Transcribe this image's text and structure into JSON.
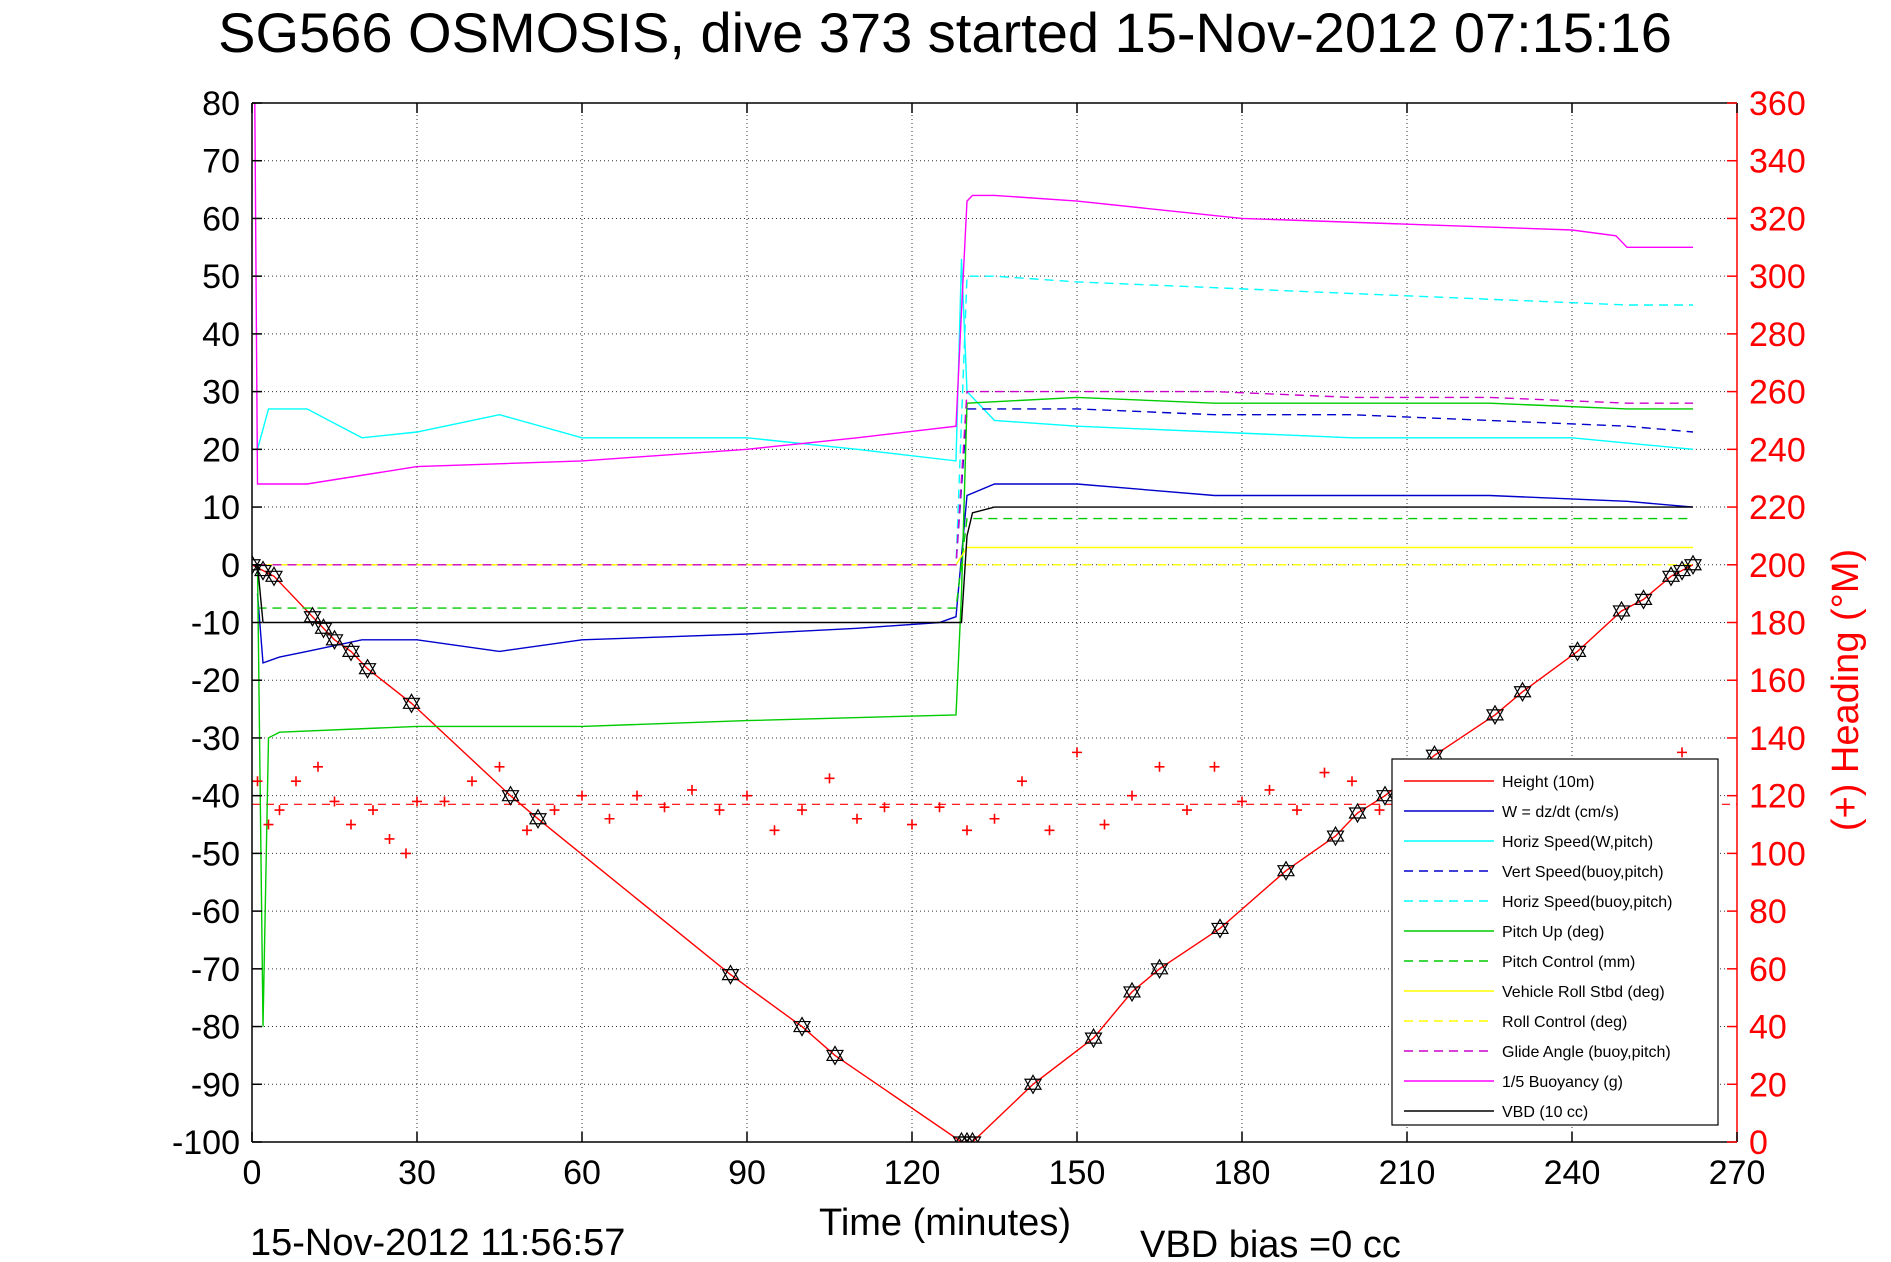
{
  "title": "SG566 OSMOSIS, dive 373 started 15-Nov-2012 07:15:16",
  "timestamp": "15-Nov-2012 11:56:57",
  "vbd_bias": "VBD bias =0 cc",
  "chart_data": {
    "type": "line",
    "title": "SG566 OSMOSIS, dive 373 started 15-Nov-2012 07:15:16",
    "xlabel": "Time (minutes)",
    "ylabel": "",
    "y2label": "(+) Heading (°M)",
    "xlim": [
      0,
      270
    ],
    "ylim": [
      -100,
      80
    ],
    "y2lim": [
      0,
      360
    ],
    "xticks": [
      0,
      30,
      60,
      90,
      120,
      150,
      180,
      210,
      240,
      270
    ],
    "yticks": [
      80,
      70,
      60,
      50,
      40,
      30,
      20,
      10,
      0,
      -10,
      -20,
      -30,
      -40,
      -50,
      -60,
      -70,
      -80,
      -90,
      -100
    ],
    "y2ticks": [
      360,
      340,
      320,
      300,
      280,
      260,
      240,
      220,
      200,
      180,
      160,
      140,
      120,
      100,
      80,
      60,
      40,
      20,
      0
    ],
    "grid": true,
    "legend_position": "bottom-right",
    "series": [
      {
        "name": "Height (10m)",
        "color": "#ff0000",
        "style": "solid",
        "x": [
          0,
          2,
          4,
          11,
          13,
          15,
          18,
          21,
          29,
          47,
          52,
          87,
          100,
          106,
          129,
          130,
          131,
          142,
          153,
          160,
          165,
          176,
          188,
          197,
          201,
          206,
          215,
          226,
          231,
          241,
          249,
          253,
          258,
          260,
          262
        ],
        "y": [
          0,
          -1,
          -2,
          -9,
          -11,
          -13,
          -15,
          -18,
          -24,
          -40,
          -44,
          -71,
          -80,
          -85,
          -100,
          -100,
          -100,
          -90,
          -82,
          -74,
          -70,
          -63,
          -53,
          -47,
          -43,
          -40,
          -33,
          -26,
          -22,
          -15,
          -8,
          -6,
          -2,
          -1,
          0
        ]
      },
      {
        "name": "W = dz/dt (cm/s)",
        "color": "#0000cc",
        "style": "solid",
        "x": [
          1,
          2,
          5,
          10,
          20,
          30,
          45,
          60,
          90,
          110,
          125,
          128,
          130,
          135,
          150,
          175,
          200,
          225,
          250,
          262
        ],
        "y": [
          -5,
          -17,
          -16,
          -15,
          -13,
          -13,
          -15,
          -13,
          -12,
          -11,
          -10,
          -9,
          12,
          14,
          14,
          12,
          12,
          12,
          11,
          10
        ]
      },
      {
        "name": "Horiz Speed(W,pitch)",
        "color": "#00ffff",
        "style": "solid",
        "x": [
          1,
          3,
          10,
          20,
          30,
          45,
          60,
          90,
          110,
          128,
          129,
          130,
          135,
          150,
          175,
          200,
          225,
          240,
          262
        ],
        "y": [
          20,
          27,
          27,
          22,
          23,
          26,
          22,
          22,
          20,
          18,
          53,
          30,
          25,
          24,
          23,
          22,
          22,
          22,
          20
        ]
      },
      {
        "name": "Vert Speed(buoy,pitch)",
        "color": "#0000cc",
        "style": "dashed",
        "x": [
          1,
          128,
          130,
          135,
          150,
          175,
          200,
          225,
          250,
          262
        ],
        "y": [
          0,
          0,
          27,
          27,
          27,
          26,
          26,
          25,
          24,
          23
        ]
      },
      {
        "name": "Horiz Speed(buoy,pitch)",
        "color": "#00ffff",
        "style": "dashed",
        "x": [
          1,
          128,
          130,
          135,
          150,
          175,
          200,
          225,
          250,
          262
        ],
        "y": [
          0,
          0,
          50,
          50,
          49,
          48,
          47,
          46,
          45,
          45
        ]
      },
      {
        "name": "Pitch Up (deg)",
        "color": "#00cc00",
        "style": "solid",
        "x": [
          1,
          2,
          3,
          5,
          30,
          60,
          90,
          128,
          129,
          130,
          150,
          175,
          200,
          225,
          250,
          262
        ],
        "y": [
          0,
          -80,
          -30,
          -29,
          -28,
          -28,
          -27,
          -26,
          -5,
          28,
          29,
          28,
          28,
          28,
          27,
          27
        ]
      },
      {
        "name": "Pitch Control (mm)",
        "color": "#00cc00",
        "style": "dashed",
        "x": [
          1,
          128,
          130,
          262
        ],
        "y": [
          -7.5,
          -7.5,
          8,
          8
        ]
      },
      {
        "name": "Vehicle Roll Stbd (deg)",
        "color": "#ffff00",
        "style": "solid",
        "x": [
          1,
          128,
          130,
          262
        ],
        "y": [
          0,
          0,
          3,
          3
        ]
      },
      {
        "name": "Roll Control (deg)",
        "color": "#ffff00",
        "style": "dashed",
        "x": [
          1,
          128,
          130,
          262
        ],
        "y": [
          0,
          0,
          0,
          0
        ]
      },
      {
        "name": "Glide Angle (buoy,pitch)",
        "color": "#cc00cc",
        "style": "dashed",
        "x": [
          1,
          128,
          130,
          150,
          175,
          200,
          225,
          250,
          262
        ],
        "y": [
          0,
          0,
          30,
          30,
          30,
          29,
          29,
          28,
          28
        ]
      },
      {
        "name": "1/5 Buoyancy (g)",
        "color": "#ff00ff",
        "style": "solid",
        "x": [
          0.5,
          1,
          3,
          10,
          30,
          60,
          90,
          110,
          128,
          129,
          130,
          131,
          135,
          150,
          180,
          210,
          240,
          248,
          250,
          262
        ],
        "y": [
          80,
          14,
          14,
          14,
          17,
          18,
          20,
          22,
          24,
          44,
          63,
          64,
          64,
          63,
          60,
          59,
          58,
          57,
          55,
          55
        ]
      },
      {
        "name": "VBD (10 cc)",
        "color": "#000000",
        "style": "solid",
        "x": [
          1,
          2,
          3,
          128,
          129,
          130,
          131,
          135,
          262
        ],
        "y": [
          0,
          -10,
          -10,
          -10,
          -10,
          5,
          9,
          10,
          10
        ]
      }
    ],
    "heading_series": {
      "name": "(+) Heading (°M)",
      "color": "#ff0000",
      "marker": "+",
      "x": [
        1,
        3,
        5,
        8,
        12,
        15,
        18,
        22,
        25,
        28,
        30,
        35,
        40,
        45,
        50,
        55,
        60,
        65,
        70,
        75,
        80,
        85,
        90,
        95,
        100,
        105,
        110,
        115,
        120,
        125,
        130,
        135,
        140,
        145,
        150,
        155,
        160,
        165,
        170,
        175,
        180,
        185,
        190,
        195,
        200,
        205,
        210,
        215,
        220,
        225,
        230,
        235,
        240,
        245,
        250,
        255,
        260,
        262
      ],
      "y": [
        125,
        110,
        115,
        125,
        130,
        118,
        110,
        115,
        105,
        100,
        118,
        118,
        125,
        130,
        108,
        115,
        120,
        112,
        120,
        116,
        122,
        115,
        120,
        108,
        115,
        126,
        112,
        116,
        110,
        116,
        108,
        112,
        125,
        108,
        135,
        110,
        120,
        130,
        115,
        130,
        118,
        122,
        115,
        128,
        125,
        115,
        112,
        128,
        122,
        115,
        125,
        120,
        115,
        122,
        125,
        130,
        135,
        128
      ]
    },
    "heading_mean": 117
  },
  "legend": [
    {
      "label": "Height (10m)",
      "color": "#ff0000",
      "style": "solid"
    },
    {
      "label": "W = dz/dt (cm/s)",
      "color": "#0000cc",
      "style": "solid"
    },
    {
      "label": "Horiz Speed(W,pitch)",
      "color": "#00ffff",
      "style": "solid"
    },
    {
      "label": "Vert Speed(buoy,pitch)",
      "color": "#0000cc",
      "style": "dashed"
    },
    {
      "label": "Horiz Speed(buoy,pitch)",
      "color": "#00ffff",
      "style": "dashed"
    },
    {
      "label": "Pitch Up (deg)",
      "color": "#00cc00",
      "style": "solid"
    },
    {
      "label": "Pitch Control (mm)",
      "color": "#00cc00",
      "style": "dashed"
    },
    {
      "label": "Vehicle Roll Stbd (deg)",
      "color": "#ffff00",
      "style": "solid"
    },
    {
      "label": "Roll Control (deg)",
      "color": "#ffff00",
      "style": "dashed"
    },
    {
      "label": "Glide Angle (buoy,pitch)",
      "color": "#cc00cc",
      "style": "dashed"
    },
    {
      "label": "1/5 Buoyancy (g)",
      "color": "#ff00ff",
      "style": "solid"
    },
    {
      "label": "VBD (10 cc)",
      "color": "#000000",
      "style": "solid"
    }
  ]
}
